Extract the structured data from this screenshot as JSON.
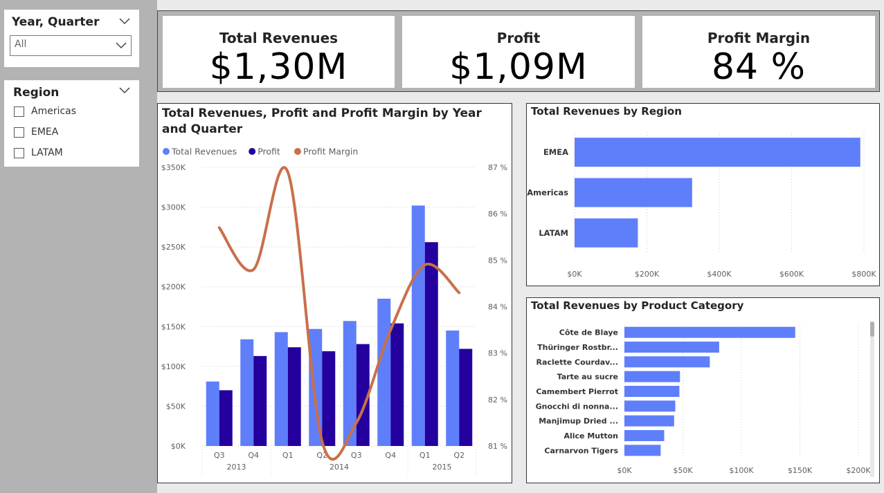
{
  "slicers": {
    "year_quarter": {
      "title": "Year, Quarter",
      "selected": "All"
    },
    "region": {
      "title": "Region",
      "options": [
        "Americas",
        "EMEA",
        "LATAM"
      ]
    }
  },
  "kpis": [
    {
      "label": "Total Revenues",
      "value": "$1,30M"
    },
    {
      "label": "Profit",
      "value": "$1,09M"
    },
    {
      "label": "Profit Margin",
      "value": "84 %"
    }
  ],
  "colors": {
    "revenue": "#5F7FFA",
    "profit": "#24009E",
    "margin": "#C8704A"
  },
  "chart_data": [
    {
      "type": "bar",
      "title": "Total Revenues, Profit and Profit Margin by Year and Quarter",
      "legend": [
        "Total Revenues",
        "Profit",
        "Profit Margin"
      ],
      "legend_position": "top-left",
      "categories": [
        "Q3",
        "Q4",
        "Q1",
        "Q2",
        "Q3",
        "Q4",
        "Q1",
        "Q2"
      ],
      "years": [
        {
          "label": "2013",
          "start": 0,
          "end": 1
        },
        {
          "label": "2014",
          "start": 2,
          "end": 5
        },
        {
          "label": "2015",
          "start": 6,
          "end": 7
        }
      ],
      "series": [
        {
          "name": "Total Revenues",
          "values": [
            81000,
            134000,
            143000,
            147000,
            157000,
            185000,
            302000,
            145000
          ]
        },
        {
          "name": "Profit",
          "values": [
            70000,
            113000,
            124000,
            119000,
            128000,
            154000,
            256000,
            122000
          ]
        },
        {
          "name": "Profit Margin",
          "values": [
            85.7,
            84.8,
            86.9,
            81.1,
            81.5,
            83.5,
            84.9,
            84.3
          ]
        }
      ],
      "ylim": [
        0,
        350000
      ],
      "yticks": [
        "$0K",
        "$50K",
        "$100K",
        "$150K",
        "$200K",
        "$250K",
        "$300K",
        "$350K"
      ],
      "y2lim": [
        81,
        87
      ],
      "y2ticks": [
        "81 %",
        "82 %",
        "83 %",
        "84 %",
        "85 %",
        "86 %",
        "87 %"
      ],
      "grid": true
    },
    {
      "type": "bar",
      "orientation": "horizontal",
      "title": "Total Revenues by Region",
      "categories": [
        "EMEA",
        "Americas",
        "LATAM"
      ],
      "values": [
        790000,
        325000,
        175000
      ],
      "xlim": [
        0,
        800000
      ],
      "xticks": [
        "$0K",
        "$200K",
        "$400K",
        "$600K",
        "$800K"
      ],
      "grid": true
    },
    {
      "type": "bar",
      "orientation": "horizontal",
      "title": "Total Revenues by Product Category",
      "categories": [
        "Côte de Blaye",
        "Thüringer Rostbr...",
        "Raclette Courdav...",
        "Tarte au sucre",
        "Camembert Pierrot",
        "Gnocchi di nonna...",
        "Manjimup Dried ...",
        "Alice Mutton",
        "Carnarvon Tigers"
      ],
      "values": [
        146000,
        81000,
        73000,
        47500,
        47000,
        43500,
        42500,
        34000,
        31000
      ],
      "xlim": [
        0,
        200000
      ],
      "xticks": [
        "$0K",
        "$50K",
        "$100K",
        "$150K",
        "$200K"
      ],
      "grid": true
    }
  ]
}
